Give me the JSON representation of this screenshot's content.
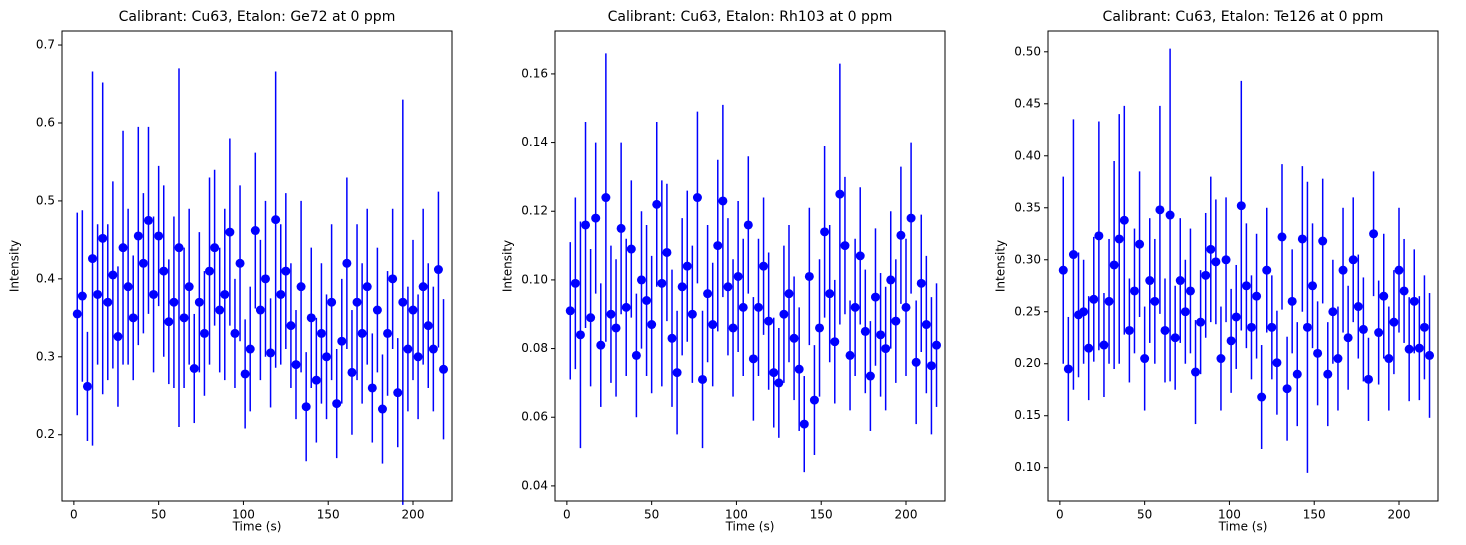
{
  "chart_data": [
    {
      "type": "errorbar",
      "title": "Calibrant: Cu63, Etalon: Ge72 at 0 ppm",
      "x_label": "Time (s)",
      "y_label": "Intensity",
      "color": "#0000ff",
      "x": [
        2,
        5,
        8,
        11,
        14,
        17,
        20,
        23,
        26,
        29,
        32,
        35,
        38,
        41,
        44,
        47,
        50,
        53,
        56,
        59,
        62,
        65,
        68,
        71,
        74,
        77,
        80,
        83,
        86,
        89,
        92,
        95,
        98,
        101,
        104,
        107,
        110,
        113,
        116,
        119,
        122,
        125,
        128,
        131,
        134,
        137,
        140,
        143,
        146,
        149,
        152,
        155,
        158,
        161,
        164,
        167,
        170,
        173,
        176,
        179,
        182,
        185,
        188,
        191,
        194,
        197,
        200,
        203,
        206,
        209,
        212,
        215,
        218
      ],
      "values": [
        0.355,
        0.378,
        0.262,
        0.426,
        0.38,
        0.452,
        0.37,
        0.405,
        0.326,
        0.44,
        0.39,
        0.35,
        0.455,
        0.42,
        0.475,
        0.38,
        0.455,
        0.41,
        0.345,
        0.37,
        0.44,
        0.35,
        0.39,
        0.285,
        0.37,
        0.33,
        0.41,
        0.44,
        0.36,
        0.38,
        0.46,
        0.33,
        0.42,
        0.278,
        0.31,
        0.462,
        0.36,
        0.4,
        0.305,
        0.476,
        0.38,
        0.41,
        0.34,
        0.29,
        0.39,
        0.236,
        0.35,
        0.27,
        0.33,
        0.3,
        0.37,
        0.24,
        0.32,
        0.42,
        0.28,
        0.37,
        0.33,
        0.39,
        0.26,
        0.36,
        0.233,
        0.33,
        0.4,
        0.254,
        0.37,
        0.31,
        0.36,
        0.3,
        0.39,
        0.34,
        0.31,
        0.412,
        0.284
      ],
      "errors": [
        0.13,
        0.11,
        0.07,
        0.24,
        0.09,
        0.2,
        0.1,
        0.12,
        0.09,
        0.15,
        0.1,
        0.08,
        0.14,
        0.09,
        0.12,
        0.1,
        0.09,
        0.11,
        0.08,
        0.11,
        0.23,
        0.09,
        0.1,
        0.07,
        0.09,
        0.08,
        0.12,
        0.1,
        0.08,
        0.11,
        0.12,
        0.07,
        0.1,
        0.07,
        0.08,
        0.1,
        0.09,
        0.1,
        0.07,
        0.19,
        0.09,
        0.1,
        0.08,
        0.07,
        0.11,
        0.07,
        0.09,
        0.08,
        0.09,
        0.08,
        0.1,
        0.07,
        0.08,
        0.11,
        0.08,
        0.1,
        0.09,
        0.1,
        0.07,
        0.08,
        0.07,
        0.08,
        0.09,
        0.07,
        0.26,
        0.08,
        0.09,
        0.08,
        0.1,
        0.08,
        0.08,
        0.1,
        0.09
      ],
      "xlim": [
        -7,
        223
      ],
      "xticks": [
        0,
        50,
        100,
        150,
        200
      ],
      "ylim": [
        0.115,
        0.718
      ],
      "yticks": [
        0.2,
        0.3,
        0.4,
        0.5,
        0.6,
        0.7
      ]
    },
    {
      "type": "errorbar",
      "title": "Calibrant: Cu63, Etalon: Rh103 at 0 ppm",
      "x_label": "Time (s)",
      "y_label": "Intensity",
      "color": "#0000ff",
      "x": [
        2,
        5,
        8,
        11,
        14,
        17,
        20,
        23,
        26,
        29,
        32,
        35,
        38,
        41,
        44,
        47,
        50,
        53,
        56,
        59,
        62,
        65,
        68,
        71,
        74,
        77,
        80,
        83,
        86,
        89,
        92,
        95,
        98,
        101,
        104,
        107,
        110,
        113,
        116,
        119,
        122,
        125,
        128,
        131,
        134,
        137,
        140,
        143,
        146,
        149,
        152,
        155,
        158,
        161,
        164,
        167,
        170,
        173,
        176,
        179,
        182,
        185,
        188,
        191,
        194,
        197,
        200,
        203,
        206,
        209,
        212,
        215,
        218
      ],
      "values": [
        0.091,
        0.099,
        0.084,
        0.116,
        0.089,
        0.118,
        0.081,
        0.124,
        0.09,
        0.086,
        0.115,
        0.092,
        0.109,
        0.078,
        0.1,
        0.094,
        0.087,
        0.122,
        0.099,
        0.108,
        0.083,
        0.073,
        0.098,
        0.104,
        0.09,
        0.124,
        0.071,
        0.096,
        0.087,
        0.11,
        0.123,
        0.098,
        0.086,
        0.101,
        0.092,
        0.116,
        0.077,
        0.092,
        0.104,
        0.088,
        0.073,
        0.07,
        0.09,
        0.096,
        0.083,
        0.074,
        0.058,
        0.101,
        0.065,
        0.086,
        0.114,
        0.096,
        0.082,
        0.125,
        0.11,
        0.078,
        0.092,
        0.107,
        0.085,
        0.072,
        0.095,
        0.084,
        0.08,
        0.1,
        0.088,
        0.113,
        0.092,
        0.118,
        0.076,
        0.099,
        0.087,
        0.075,
        0.081
      ],
      "errors": [
        0.02,
        0.025,
        0.033,
        0.03,
        0.02,
        0.022,
        0.018,
        0.042,
        0.02,
        0.02,
        0.025,
        0.02,
        0.02,
        0.018,
        0.02,
        0.022,
        0.02,
        0.024,
        0.03,
        0.02,
        0.02,
        0.018,
        0.02,
        0.022,
        0.02,
        0.025,
        0.02,
        0.02,
        0.018,
        0.025,
        0.028,
        0.02,
        0.02,
        0.022,
        0.02,
        0.02,
        0.018,
        0.02,
        0.02,
        0.02,
        0.016,
        0.016,
        0.02,
        0.02,
        0.018,
        0.018,
        0.014,
        0.02,
        0.016,
        0.02,
        0.025,
        0.02,
        0.018,
        0.038,
        0.02,
        0.016,
        0.02,
        0.02,
        0.018,
        0.016,
        0.02,
        0.018,
        0.018,
        0.02,
        0.018,
        0.02,
        0.02,
        0.022,
        0.018,
        0.02,
        0.02,
        0.02,
        0.018
      ],
      "xlim": [
        -7,
        223
      ],
      "xticks": [
        0,
        50,
        100,
        150,
        200
      ],
      "ylim": [
        0.0356,
        0.1725
      ],
      "yticks": [
        0.04,
        0.06,
        0.08,
        {
          "value": 0.1,
          "label": "0.10"
        },
        0.12,
        0.14,
        0.16
      ]
    },
    {
      "type": "errorbar",
      "title": "Calibrant: Cu63, Etalon: Te126 at 0 ppm",
      "x_label": "Time (s)",
      "y_label": "Intensity",
      "color": "#0000ff",
      "x": [
        2,
        5,
        8,
        11,
        14,
        17,
        20,
        23,
        26,
        29,
        32,
        35,
        38,
        41,
        44,
        47,
        50,
        53,
        56,
        59,
        62,
        65,
        68,
        71,
        74,
        77,
        80,
        83,
        86,
        89,
        92,
        95,
        98,
        101,
        104,
        107,
        110,
        113,
        116,
        119,
        122,
        125,
        128,
        131,
        134,
        137,
        140,
        143,
        146,
        149,
        152,
        155,
        158,
        161,
        164,
        167,
        170,
        173,
        176,
        179,
        182,
        185,
        188,
        191,
        194,
        197,
        200,
        203,
        206,
        209,
        212,
        215,
        218
      ],
      "values": [
        0.29,
        0.195,
        0.305,
        0.247,
        0.25,
        0.215,
        0.262,
        0.323,
        0.218,
        0.26,
        0.295,
        0.32,
        0.338,
        0.232,
        0.27,
        0.315,
        0.205,
        0.28,
        0.26,
        0.348,
        0.232,
        0.343,
        0.225,
        0.28,
        0.25,
        0.27,
        0.192,
        0.24,
        0.285,
        0.31,
        0.298,
        0.205,
        0.3,
        0.222,
        0.245,
        0.352,
        0.275,
        0.235,
        0.265,
        0.168,
        0.29,
        0.235,
        0.201,
        0.322,
        0.176,
        0.26,
        0.19,
        0.32,
        0.235,
        0.275,
        0.21,
        0.318,
        0.19,
        0.25,
        0.205,
        0.29,
        0.225,
        0.3,
        0.255,
        0.233,
        0.185,
        0.325,
        0.23,
        0.265,
        0.205,
        0.24,
        0.29,
        0.27,
        0.214,
        0.26,
        0.215,
        0.235,
        0.208
      ],
      "errors": [
        0.09,
        0.05,
        0.13,
        0.06,
        0.05,
        0.05,
        0.06,
        0.11,
        0.05,
        0.06,
        0.1,
        0.12,
        0.11,
        0.05,
        0.06,
        0.07,
        0.05,
        0.06,
        0.06,
        0.1,
        0.05,
        0.16,
        0.05,
        0.06,
        0.05,
        0.06,
        0.05,
        0.05,
        0.06,
        0.07,
        0.06,
        0.05,
        0.06,
        0.05,
        0.05,
        0.12,
        0.06,
        0.05,
        0.06,
        0.05,
        0.06,
        0.05,
        0.05,
        0.07,
        0.05,
        0.05,
        0.05,
        0.07,
        0.14,
        0.06,
        0.05,
        0.06,
        0.05,
        0.05,
        0.05,
        0.06,
        0.05,
        0.06,
        0.05,
        0.05,
        0.04,
        0.06,
        0.05,
        0.06,
        0.05,
        0.05,
        0.06,
        0.05,
        0.05,
        0.05,
        0.05,
        0.05,
        0.06
      ],
      "xlim": [
        -7,
        223
      ],
      "xticks": [
        0,
        50,
        100,
        150,
        200
      ],
      "ylim": [
        0.068,
        0.52
      ],
      "yticks": [
        {
          "value": 0.1,
          "label": "0.10"
        },
        0.15,
        {
          "value": 0.2,
          "label": "0.20"
        },
        0.25,
        {
          "value": 0.3,
          "label": "0.30"
        },
        0.35,
        {
          "value": 0.4,
          "label": "0.40"
        },
        0.45,
        {
          "value": 0.5,
          "label": "0.50"
        }
      ]
    }
  ]
}
